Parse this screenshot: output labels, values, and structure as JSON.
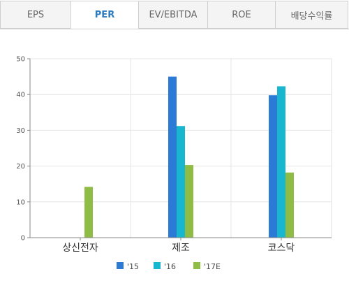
{
  "tabs": [
    {
      "label": "EPS",
      "active": false
    },
    {
      "label": "PER",
      "active": true
    },
    {
      "label": "EV/EBITDA",
      "active": false
    },
    {
      "label": "ROE",
      "active": false
    },
    {
      "label": "배당수익률",
      "active": false
    }
  ],
  "chart_data": {
    "type": "bar",
    "categories": [
      "상신전자",
      "제조",
      "코스닥"
    ],
    "series": [
      {
        "name": "'15",
        "values": [
          null,
          45,
          39.8
        ],
        "color": "#2b7bd6"
      },
      {
        "name": "'16",
        "values": [
          null,
          31.2,
          42.3
        ],
        "color": "#18b7cf"
      },
      {
        "name": "'17E",
        "values": [
          14.2,
          20.3,
          18.2
        ],
        "color": "#8fbc45"
      }
    ],
    "ylim": [
      0,
      50
    ],
    "yticks": [
      0,
      10,
      20,
      30,
      40,
      50
    ],
    "grid": true,
    "legend_position": "bottom"
  }
}
